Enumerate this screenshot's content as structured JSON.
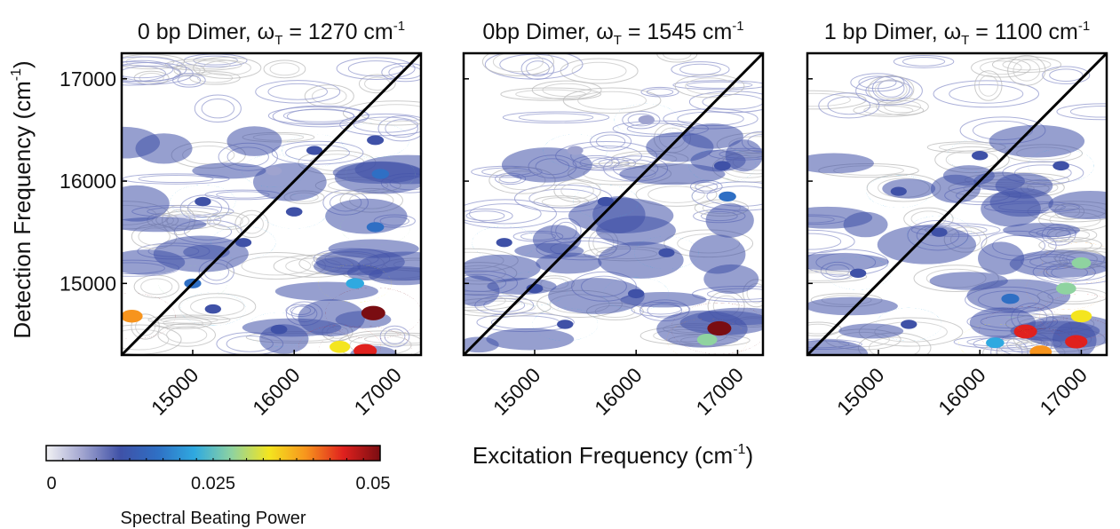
{
  "chart_data": {
    "type": "heatmap",
    "panels": [
      {
        "title_main": "0 bp Dimer, ",
        "title_omega": "ω",
        "title_sub": "T",
        "title_value": " = 1270 cm",
        "title_sup": "-1",
        "blobs": [
          {
            "x": 16780,
            "y": 14710,
            "v": 0.05
          },
          {
            "x": 16700,
            "y": 14340,
            "v": 0.046
          },
          {
            "x": 16450,
            "y": 14380,
            "v": 0.032
          },
          {
            "x": 14400,
            "y": 14680,
            "v": 0.038
          },
          {
            "x": 16600,
            "y": 15000,
            "v": 0.02
          },
          {
            "x": 16800,
            "y": 15550,
            "v": 0.016
          },
          {
            "x": 16850,
            "y": 16070,
            "v": 0.015
          },
          {
            "x": 16800,
            "y": 16400,
            "v": 0.013
          },
          {
            "x": 15000,
            "y": 15000,
            "v": 0.014
          },
          {
            "x": 15200,
            "y": 14750,
            "v": 0.01
          },
          {
            "x": 15850,
            "y": 14550,
            "v": 0.012
          },
          {
            "x": 15100,
            "y": 15800,
            "v": 0.01
          },
          {
            "x": 16000,
            "y": 15700,
            "v": 0.011
          },
          {
            "x": 15500,
            "y": 15400,
            "v": 0.009
          },
          {
            "x": 16200,
            "y": 16300,
            "v": 0.009
          },
          {
            "x": 15800,
            "y": 16100,
            "v": 0.008
          }
        ]
      },
      {
        "title_main": "0bp Dimer, ",
        "title_omega": "ω",
        "title_sub": "T",
        "title_value": " = 1545 cm",
        "title_sup": "-1",
        "blobs": [
          {
            "x": 16820,
            "y": 14560,
            "v": 0.05
          },
          {
            "x": 16700,
            "y": 14450,
            "v": 0.03
          },
          {
            "x": 16900,
            "y": 15850,
            "v": 0.016
          },
          {
            "x": 16850,
            "y": 16150,
            "v": 0.012
          },
          {
            "x": 15700,
            "y": 15800,
            "v": 0.01
          },
          {
            "x": 15000,
            "y": 14950,
            "v": 0.012
          },
          {
            "x": 15300,
            "y": 14600,
            "v": 0.01
          },
          {
            "x": 16000,
            "y": 14900,
            "v": 0.01
          },
          {
            "x": 16300,
            "y": 15300,
            "v": 0.009
          },
          {
            "x": 15400,
            "y": 16300,
            "v": 0.008
          },
          {
            "x": 16100,
            "y": 16600,
            "v": 0.008
          },
          {
            "x": 14700,
            "y": 15400,
            "v": 0.009
          }
        ]
      },
      {
        "title_main": "1 bp Dimer, ",
        "title_omega": "ω",
        "title_sub": "T",
        "title_value": " = 1100 cm",
        "title_sup": "-1",
        "blobs": [
          {
            "x": 16450,
            "y": 14530,
            "v": 0.046
          },
          {
            "x": 16950,
            "y": 14430,
            "v": 0.042
          },
          {
            "x": 16600,
            "y": 14330,
            "v": 0.04
          },
          {
            "x": 17000,
            "y": 14680,
            "v": 0.034
          },
          {
            "x": 16850,
            "y": 14950,
            "v": 0.03
          },
          {
            "x": 17000,
            "y": 15200,
            "v": 0.026
          },
          {
            "x": 16300,
            "y": 14850,
            "v": 0.018
          },
          {
            "x": 16150,
            "y": 14420,
            "v": 0.02
          },
          {
            "x": 15300,
            "y": 14600,
            "v": 0.01
          },
          {
            "x": 16000,
            "y": 16250,
            "v": 0.01
          },
          {
            "x": 16800,
            "y": 16150,
            "v": 0.011
          },
          {
            "x": 15200,
            "y": 15900,
            "v": 0.009
          },
          {
            "x": 15600,
            "y": 15500,
            "v": 0.009
          },
          {
            "x": 14800,
            "y": 15100,
            "v": 0.01
          }
        ]
      }
    ],
    "xlim": [
      14300,
      17250
    ],
    "ylim": [
      14300,
      17250
    ],
    "xticks": [
      "15000",
      "16000",
      "17000"
    ],
    "yticks": [
      "15000",
      "16000",
      "17000"
    ],
    "xlabel_main": "Excitation Frequency (cm",
    "xlabel_sup": "-1",
    "xlabel_end": ")",
    "ylabel_main": "Detection Frequency (cm",
    "ylabel_sup": "-1",
    "ylabel_end": ")",
    "diagonal_line": true,
    "colorbar": {
      "min": 0,
      "max": 0.05,
      "ticks": [
        "0",
        "0.025",
        "0.05"
      ],
      "label": "Spectral Beating Power",
      "colors": [
        "#f2f2f4",
        "#9fa3cf",
        "#3f51a7",
        "#2f6fc4",
        "#2fa9e0",
        "#8fd3a0",
        "#f4e51f",
        "#f7941d",
        "#e0211e",
        "#7a0d12"
      ]
    }
  }
}
